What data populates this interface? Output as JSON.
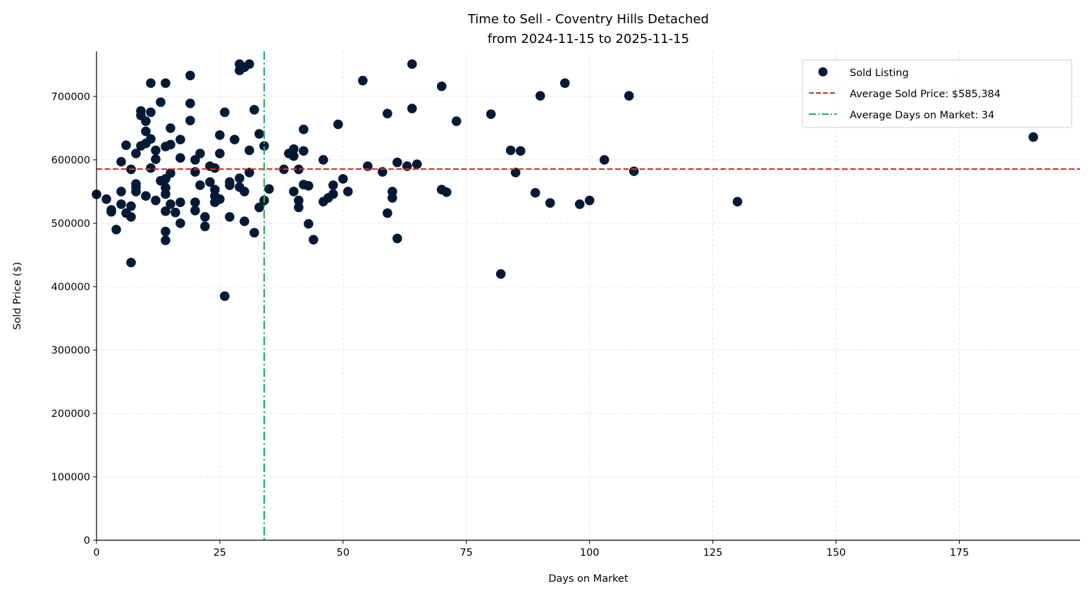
{
  "chart_data": {
    "type": "scatter",
    "title": "Time to Sell - Coventry Hills Detached",
    "subtitle": "from 2024-11-15 to 2025-11-15",
    "xlabel": "Days on Market",
    "ylabel": "Sold Price ($)",
    "xlim": [
      0,
      199.5
    ],
    "ylim": [
      0,
      771000
    ],
    "xticks": [
      0,
      25,
      50,
      75,
      100,
      125,
      150,
      175
    ],
    "yticks": [
      0,
      100000,
      200000,
      300000,
      400000,
      500000,
      600000,
      700000
    ],
    "grid": true,
    "legend_placement": "top-right",
    "colors": {
      "points": "#001a35",
      "avg_price": "#c0392b",
      "avg_days": "#27ae60"
    },
    "series": [
      {
        "name": "Sold Listing",
        "points": [
          [
            0,
            545600
          ],
          [
            2,
            538000
          ],
          [
            3,
            521000
          ],
          [
            3,
            518000
          ],
          [
            4,
            490000
          ],
          [
            5,
            597000
          ],
          [
            5,
            550000
          ],
          [
            5,
            530000
          ],
          [
            6,
            623000
          ],
          [
            6,
            516000
          ],
          [
            7,
            585000
          ],
          [
            7,
            527000
          ],
          [
            7,
            510000
          ],
          [
            7,
            438000
          ],
          [
            8,
            610000
          ],
          [
            8,
            562000
          ],
          [
            8,
            557000
          ],
          [
            8,
            550000
          ],
          [
            9,
            677000
          ],
          [
            9,
            670000
          ],
          [
            9,
            622000
          ],
          [
            10,
            661000
          ],
          [
            10,
            645000
          ],
          [
            10,
            626000
          ],
          [
            10,
            543000
          ],
          [
            11,
            721000
          ],
          [
            11,
            675000
          ],
          [
            11,
            633000
          ],
          [
            11,
            587000
          ],
          [
            12,
            615000
          ],
          [
            12,
            601000
          ],
          [
            12,
            536000
          ],
          [
            13,
            691000
          ],
          [
            13,
            567000
          ],
          [
            14,
            721000
          ],
          [
            14,
            621000
          ],
          [
            14,
            570000
          ],
          [
            14,
            556000
          ],
          [
            14,
            546000
          ],
          [
            14,
            519000
          ],
          [
            14,
            487000
          ],
          [
            14,
            473000
          ],
          [
            15,
            650000
          ],
          [
            15,
            624000
          ],
          [
            15,
            579000
          ],
          [
            15,
            530000
          ],
          [
            16,
            517000
          ],
          [
            17,
            632000
          ],
          [
            17,
            603000
          ],
          [
            17,
            533000
          ],
          [
            17,
            500000
          ],
          [
            19,
            733000
          ],
          [
            19,
            689000
          ],
          [
            19,
            662000
          ],
          [
            20,
            600000
          ],
          [
            20,
            581000
          ],
          [
            20,
            533000
          ],
          [
            20,
            520000
          ],
          [
            21,
            610000
          ],
          [
            21,
            560000
          ],
          [
            22,
            510000
          ],
          [
            22,
            495000
          ],
          [
            23,
            590000
          ],
          [
            23,
            565000
          ],
          [
            24,
            587000
          ],
          [
            24,
            553000
          ],
          [
            24,
            543000
          ],
          [
            24,
            533000
          ],
          [
            25,
            639000
          ],
          [
            25,
            610000
          ],
          [
            25,
            538000
          ],
          [
            26,
            675000
          ],
          [
            26,
            385000
          ],
          [
            27,
            510000
          ],
          [
            27,
            565000
          ],
          [
            27,
            560000
          ],
          [
            28,
            632000
          ],
          [
            29,
            751000
          ],
          [
            29,
            741000
          ],
          [
            29,
            571000
          ],
          [
            29,
            557000
          ],
          [
            30,
            746000
          ],
          [
            30,
            550000
          ],
          [
            30,
            503000
          ],
          [
            31,
            751000
          ],
          [
            31,
            615000
          ],
          [
            31,
            580000
          ],
          [
            32,
            679000
          ],
          [
            32,
            485000
          ],
          [
            33,
            641000
          ],
          [
            33,
            525000
          ],
          [
            34,
            622000
          ],
          [
            34,
            536000
          ],
          [
            35,
            554000
          ],
          [
            38,
            585000
          ],
          [
            39,
            610000
          ],
          [
            40,
            617000
          ],
          [
            40,
            606000
          ],
          [
            40,
            550000
          ],
          [
            41,
            585000
          ],
          [
            41,
            536000
          ],
          [
            41,
            525000
          ],
          [
            42,
            648000
          ],
          [
            42,
            614000
          ],
          [
            42,
            561000
          ],
          [
            43,
            559000
          ],
          [
            43,
            499000
          ],
          [
            44,
            474000
          ],
          [
            46,
            600000
          ],
          [
            46,
            534000
          ],
          [
            47,
            540000
          ],
          [
            48,
            560000
          ],
          [
            48,
            546000
          ],
          [
            49,
            656000
          ],
          [
            50,
            570000
          ],
          [
            51,
            550000
          ],
          [
            54,
            725000
          ],
          [
            55,
            590000
          ],
          [
            58,
            581000
          ],
          [
            59,
            673000
          ],
          [
            59,
            516000
          ],
          [
            60,
            550000
          ],
          [
            60,
            540000
          ],
          [
            61,
            596000
          ],
          [
            61,
            476000
          ],
          [
            63,
            590000
          ],
          [
            64,
            751000
          ],
          [
            64,
            681000
          ],
          [
            65,
            593000
          ],
          [
            70,
            716000
          ],
          [
            70,
            553000
          ],
          [
            71,
            549000
          ],
          [
            73,
            661000
          ],
          [
            80,
            672000
          ],
          [
            82,
            420000
          ],
          [
            84,
            615000
          ],
          [
            85,
            580000
          ],
          [
            86,
            614000
          ],
          [
            89,
            548000
          ],
          [
            90,
            701000
          ],
          [
            92,
            532000
          ],
          [
            95,
            721000
          ],
          [
            98,
            530000
          ],
          [
            100,
            536000
          ],
          [
            103,
            600000
          ],
          [
            108,
            701000
          ],
          [
            109,
            582000
          ],
          [
            130,
            534000
          ],
          [
            190,
            636000
          ]
        ]
      }
    ],
    "reference_lines": [
      {
        "name": "Average Sold Price: $585,384",
        "orientation": "horizontal",
        "value": 585384,
        "style": "dashed"
      },
      {
        "name": "Average Days on Market: 34",
        "orientation": "vertical",
        "value": 34,
        "style": "dashdot"
      }
    ]
  }
}
